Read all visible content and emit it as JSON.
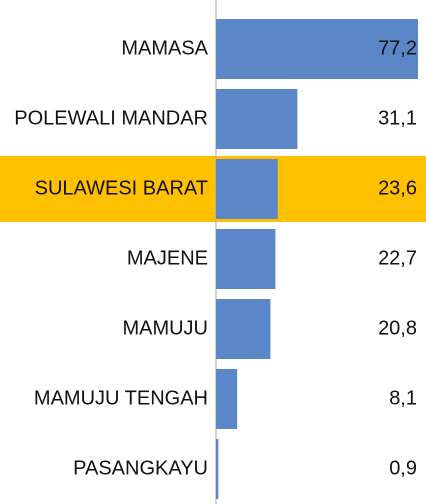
{
  "chart_data": {
    "type": "barh",
    "categories": [
      "MAMASA",
      "POLEWALI MANDAR",
      "SULAWESI BARAT",
      "MAJENE",
      "MAMUJU",
      "MAMUJU TENGAH",
      "PASANGKAYU"
    ],
    "values": [
      77.2,
      31.1,
      23.6,
      22.7,
      20.8,
      8.1,
      0.9
    ],
    "value_labels": [
      "77,2",
      "31,1",
      "23,6",
      "22,7",
      "20,8",
      "8,1",
      "0,9"
    ],
    "color": "#5b87c8",
    "highlight": 2,
    "highlight_color": "#ffc000"
  }
}
